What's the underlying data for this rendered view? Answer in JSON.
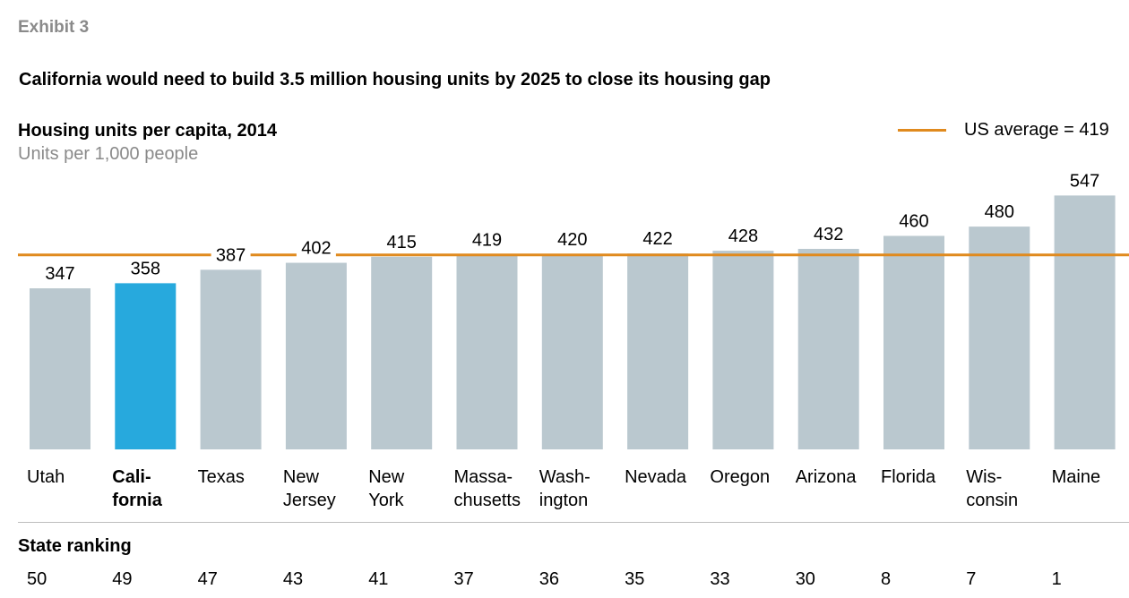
{
  "exhibit_label": "Exhibit 3",
  "headline": "California would need to build 3.5 million housing units by 2025 to close its housing gap",
  "legend": {
    "text": "US average = 419"
  },
  "colors": {
    "bar": "#bac8cf",
    "highlight": "#27a9dd",
    "reference_line": "#e08a1e",
    "divider": "#bdbdbd"
  },
  "ranking_title": "State ranking",
  "chart_data": {
    "type": "bar",
    "title": "Housing units per capita, 2014",
    "subtitle": "Units per 1,000 people",
    "categories": [
      "Utah",
      "California",
      "Texas",
      "New Jersey",
      "New York",
      "Massachusetts",
      "Washington",
      "Nevada",
      "Oregon",
      "Arizona",
      "Florida",
      "Wisconsin",
      "Maine"
    ],
    "category_display_lines": [
      [
        "Utah"
      ],
      [
        "Cali-",
        "fornia"
      ],
      [
        "Texas"
      ],
      [
        "New",
        "Jersey"
      ],
      [
        "New",
        "York"
      ],
      [
        "Massa-",
        "chusetts"
      ],
      [
        "Wash-",
        "ington"
      ],
      [
        "Nevada"
      ],
      [
        "Oregon"
      ],
      [
        "Arizona"
      ],
      [
        "Florida"
      ],
      [
        "Wis-",
        "consin"
      ],
      [
        "Maine"
      ]
    ],
    "values": [
      347,
      358,
      387,
      402,
      415,
      419,
      420,
      422,
      428,
      432,
      460,
      480,
      547
    ],
    "highlight_category": "California",
    "reference_line": {
      "value": 419,
      "label": "US average = 419"
    },
    "state_ranking": [
      50,
      49,
      47,
      43,
      41,
      37,
      36,
      35,
      33,
      30,
      8,
      7,
      1
    ],
    "xlabel": "",
    "ylabel": "",
    "grid": false,
    "legend_position": "top-right"
  }
}
